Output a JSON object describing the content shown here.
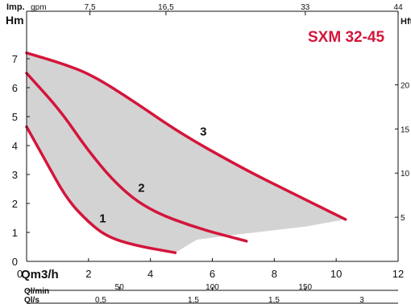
{
  "chart_data": {
    "type": "line",
    "title": "SXM 32-45",
    "xlabel": "Qm3/h",
    "ylabel": "Hm",
    "xlim": [
      0,
      12
    ],
    "ylim": [
      0,
      8
    ],
    "x_ticks": [
      "0",
      "2",
      "4",
      "6",
      "8",
      "10",
      "12"
    ],
    "y_ticks": [
      "0",
      "1",
      "2",
      "3",
      "4",
      "5",
      "6",
      "7"
    ],
    "grid": false,
    "series": [
      {
        "name": "1",
        "x": [
          0.0,
          0.6,
          1.3,
          2.0,
          2.6,
          3.5,
          4.8
        ],
        "y": [
          4.65,
          3.5,
          2.15,
          1.35,
          0.85,
          0.55,
          0.3
        ]
      },
      {
        "name": "2",
        "x": [
          0.0,
          1.1,
          2.0,
          3.0,
          4.0,
          5.5,
          7.1
        ],
        "y": [
          6.5,
          5.2,
          3.8,
          2.55,
          1.75,
          1.15,
          0.7
        ]
      },
      {
        "name": "3",
        "x": [
          0.0,
          1.1,
          2.1,
          3.5,
          5.0,
          7.0,
          8.5,
          10.3
        ],
        "y": [
          7.2,
          6.85,
          6.45,
          5.5,
          4.4,
          3.2,
          2.4,
          1.45
        ]
      }
    ],
    "operating_region": {
      "x": [
        0.0,
        2.1,
        3.5,
        5.0,
        7.0,
        8.5,
        10.3,
        9.0,
        7.0,
        5.5,
        4.8,
        3.5,
        2.6,
        2.0,
        1.3,
        0.6,
        0.0
      ],
      "y": [
        7.2,
        6.45,
        5.5,
        4.4,
        3.2,
        2.4,
        1.45,
        1.2,
        0.95,
        0.75,
        0.3,
        0.55,
        0.85,
        1.35,
        2.15,
        3.5,
        4.65
      ]
    },
    "secondary_axes": {
      "top": {
        "label_bold": "Imp.",
        "label_unit": "gpm",
        "ticks": [
          "7,5",
          "16,5",
          "33",
          "44"
        ]
      },
      "right": {
        "label": "Hft",
        "ticks": [
          "5",
          "10",
          "15",
          "20"
        ]
      },
      "bottom_1": {
        "label": "Ql/min",
        "ticks": [
          "50",
          "100",
          "150"
        ]
      },
      "bottom_2": {
        "label": "Ql/s",
        "ticks": [
          "0,5",
          "1,5",
          "1,5",
          "3"
        ]
      }
    },
    "colors": {
      "curve": "#d4153b",
      "region": "#d3d3d3",
      "axis": "#111111"
    }
  }
}
